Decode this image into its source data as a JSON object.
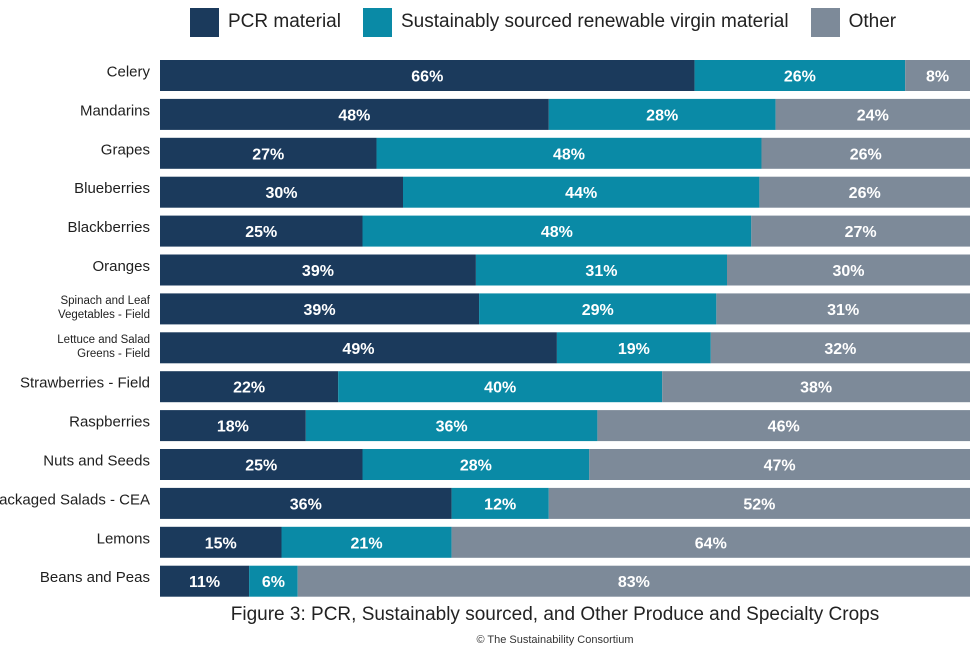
{
  "legend": {
    "items": [
      {
        "label": "PCR material",
        "color": "#1b3a5c"
      },
      {
        "label": "Sustainably sourced renewable virgin material",
        "color": "#0a8aa6"
      },
      {
        "label": "Other",
        "color": "#7d8a99"
      }
    ]
  },
  "caption": "Figure 3: PCR, Sustainably sourced, and Other Produce and Specialty Crops",
  "credit": "© The Sustainability Consortium",
  "chart_data": {
    "type": "bar",
    "orientation": "horizontal",
    "stacked": "percent",
    "legend_position": "top",
    "categories": [
      "Celery",
      "Mandarins",
      "Grapes",
      "Blueberries",
      "Blackberries",
      "Oranges",
      "Spinach and Leaf Vegetables - Field",
      "Lettuce and Salad Greens - Field",
      "Strawberries - Field",
      "Raspberries",
      "Nuts and Seeds",
      "Packaged Salads - CEA",
      "Lemons",
      "Beans and Peas"
    ],
    "series": [
      {
        "name": "PCR material",
        "color": "#1b3a5c",
        "values": [
          66,
          48,
          27,
          30,
          25,
          39,
          39,
          49,
          22,
          18,
          25,
          36,
          15,
          11
        ]
      },
      {
        "name": "Sustainably sourced renewable virgin material",
        "color": "#0a8aa6",
        "values": [
          26,
          28,
          48,
          44,
          48,
          31,
          29,
          19,
          40,
          36,
          28,
          12,
          21,
          6
        ]
      },
      {
        "name": "Other",
        "color": "#7d8a99",
        "values": [
          8,
          24,
          26,
          26,
          27,
          30,
          31,
          32,
          38,
          46,
          47,
          52,
          64,
          83
        ]
      }
    ],
    "value_format": "{v}%"
  }
}
